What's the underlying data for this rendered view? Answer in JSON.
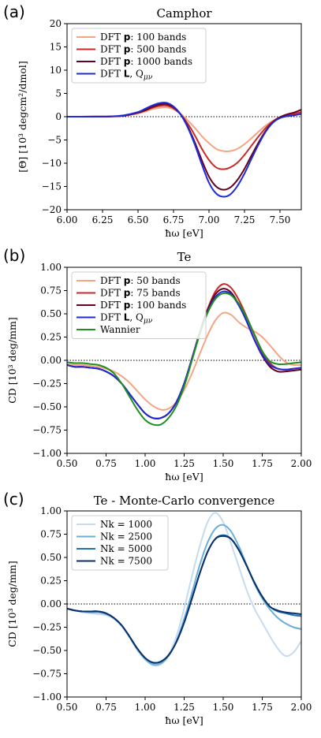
{
  "chart_data": [
    {
      "panel_label": "(a)",
      "type": "line",
      "title": "Camphor",
      "xlabel": "ħω [eV]",
      "ylabel": "[Θ] [10³ degcm²/dmol]",
      "xlim": [
        6.0,
        7.65
      ],
      "ylim": [
        -20,
        20
      ],
      "xticks": [
        6.0,
        6.25,
        6.5,
        6.75,
        7.0,
        7.25,
        7.5
      ],
      "xtick_labels": [
        "6.00",
        "6.25",
        "6.50",
        "6.75",
        "7.00",
        "7.25",
        "7.50"
      ],
      "yticks": [
        -20,
        -15,
        -10,
        -5,
        0,
        5,
        10,
        15,
        20
      ],
      "ytick_labels": [
        "−20",
        "−15",
        "−10",
        "−5",
        "0",
        "5",
        "10",
        "15",
        "20"
      ],
      "zero_line": true,
      "legend_position": "upper-left",
      "x": [
        6.0,
        6.1,
        6.2,
        6.3,
        6.4,
        6.5,
        6.55,
        6.6,
        6.65,
        6.7,
        6.75,
        6.8,
        6.85,
        6.9,
        6.95,
        7.0,
        7.05,
        7.1,
        7.15,
        7.2,
        7.25,
        7.3,
        7.35,
        7.4,
        7.45,
        7.5,
        7.55,
        7.6,
        7.65
      ],
      "series": [
        {
          "name": "DFT p: 100 bands",
          "label_parts": [
            "DFT ",
            "p",
            ": 100 bands"
          ],
          "color": "#f4a582",
          "values": [
            0,
            0,
            0.02,
            0.05,
            0.2,
            0.7,
            1.1,
            1.6,
            1.9,
            2.0,
            1.6,
            0.6,
            -0.8,
            -2.4,
            -4.2,
            -5.7,
            -6.9,
            -7.4,
            -7.4,
            -6.9,
            -5.9,
            -4.6,
            -3.2,
            -1.9,
            -0.9,
            -0.2,
            0.2,
            0.5,
            0.9
          ]
        },
        {
          "name": "DFT p: 500 bands",
          "label_parts": [
            "DFT ",
            "p",
            ": 500 bands"
          ],
          "color": "#c82a2a",
          "values": [
            0,
            0,
            0.02,
            0.05,
            0.2,
            0.8,
            1.3,
            1.9,
            2.3,
            2.4,
            1.8,
            0.5,
            -1.5,
            -4.0,
            -6.9,
            -9.3,
            -10.9,
            -11.3,
            -10.9,
            -9.9,
            -8.2,
            -6.2,
            -4.2,
            -2.4,
            -1.0,
            -0.1,
            0.3,
            0.6,
            1.0
          ]
        },
        {
          "name": "DFT p: 1000 bands",
          "label_parts": [
            "DFT ",
            "p",
            ": 1000 bands"
          ],
          "color": "#67001f",
          "values": [
            0,
            0,
            0.02,
            0.05,
            0.2,
            0.9,
            1.4,
            2.1,
            2.6,
            2.7,
            2.0,
            0.5,
            -2.1,
            -5.5,
            -9.4,
            -12.9,
            -15.0,
            -15.7,
            -15.2,
            -13.6,
            -11.2,
            -8.3,
            -5.5,
            -3.0,
            -1.2,
            -0.1,
            0.5,
            0.9,
            1.5
          ]
        },
        {
          "name": "DFT L, Qμν",
          "label_parts": [
            "DFT ",
            "L",
            ", Q",
            "μν"
          ],
          "color": "#1d2bd9",
          "values": [
            0,
            0,
            0.02,
            0.05,
            0.3,
            1.0,
            1.7,
            2.4,
            2.9,
            3.0,
            2.2,
            0.5,
            -2.3,
            -6.0,
            -10.3,
            -14.2,
            -16.5,
            -17.2,
            -16.7,
            -14.9,
            -12.2,
            -9.0,
            -5.9,
            -3.2,
            -1.3,
            -0.3,
            0.1,
            0.3,
            0.6
          ]
        }
      ]
    },
    {
      "panel_label": "(b)",
      "type": "line",
      "title": "Te",
      "xlabel": "ħω [eV]",
      "ylabel": "CD [10³ deg/mm]",
      "xlim": [
        0.5,
        2.0
      ],
      "ylim": [
        -1.0,
        1.0
      ],
      "xticks": [
        0.5,
        0.75,
        1.0,
        1.25,
        1.5,
        1.75,
        2.0
      ],
      "xtick_labels": [
        "0.50",
        "0.75",
        "1.00",
        "1.25",
        "1.50",
        "1.75",
        "2.00"
      ],
      "yticks": [
        -1.0,
        -0.75,
        -0.5,
        -0.25,
        0.0,
        0.25,
        0.5,
        0.75,
        1.0
      ],
      "ytick_labels": [
        "−1.00",
        "−0.75",
        "−0.50",
        "−0.25",
        "0.00",
        "0.25",
        "0.50",
        "0.75",
        "1.00"
      ],
      "zero_line": true,
      "legend_position": "upper-left",
      "x": [
        0.5,
        0.55,
        0.6,
        0.65,
        0.7,
        0.75,
        0.8,
        0.85,
        0.9,
        0.95,
        1.0,
        1.05,
        1.1,
        1.15,
        1.2,
        1.25,
        1.3,
        1.35,
        1.4,
        1.45,
        1.5,
        1.55,
        1.6,
        1.65,
        1.7,
        1.75,
        1.8,
        1.85,
        1.9,
        1.95,
        2.0
      ],
      "series": [
        {
          "name": "DFT p: 50 bands",
          "label_parts": [
            "DFT ",
            "p",
            ": 50 bands"
          ],
          "color": "#f4a582",
          "values": [
            -0.04,
            -0.05,
            -0.05,
            -0.06,
            -0.07,
            -0.09,
            -0.12,
            -0.17,
            -0.24,
            -0.33,
            -0.42,
            -0.49,
            -0.53,
            -0.52,
            -0.45,
            -0.32,
            -0.14,
            0.07,
            0.27,
            0.43,
            0.51,
            0.49,
            0.41,
            0.35,
            0.31,
            0.25,
            0.16,
            0.06,
            -0.02,
            -0.05,
            -0.05
          ]
        },
        {
          "name": "DFT p: 75 bands",
          "label_parts": [
            "DFT ",
            "p",
            ": 75 bands"
          ],
          "color": "#c82a2a",
          "values": [
            -0.05,
            -0.07,
            -0.07,
            -0.08,
            -0.09,
            -0.12,
            -0.17,
            -0.25,
            -0.36,
            -0.47,
            -0.57,
            -0.62,
            -0.62,
            -0.57,
            -0.45,
            -0.25,
            0.02,
            0.3,
            0.55,
            0.74,
            0.82,
            0.78,
            0.65,
            0.47,
            0.27,
            0.09,
            -0.03,
            -0.09,
            -0.1,
            -0.09,
            -0.08
          ]
        },
        {
          "name": "DFT p: 100 bands",
          "label_parts": [
            "DFT ",
            "p",
            ": 100 bands"
          ],
          "color": "#67001f",
          "values": [
            -0.05,
            -0.07,
            -0.07,
            -0.08,
            -0.09,
            -0.12,
            -0.17,
            -0.25,
            -0.36,
            -0.47,
            -0.57,
            -0.62,
            -0.62,
            -0.57,
            -0.45,
            -0.25,
            0.02,
            0.3,
            0.54,
            0.71,
            0.77,
            0.73,
            0.6,
            0.42,
            0.22,
            0.05,
            -0.07,
            -0.12,
            -0.12,
            -0.11,
            -0.1
          ]
        },
        {
          "name": "DFT L, Qμν",
          "label_parts": [
            "DFT ",
            "L",
            ", Q",
            "μν"
          ],
          "color": "#1d2bd9",
          "values": [
            -0.05,
            -0.07,
            -0.07,
            -0.08,
            -0.09,
            -0.12,
            -0.17,
            -0.25,
            -0.36,
            -0.47,
            -0.57,
            -0.62,
            -0.62,
            -0.57,
            -0.45,
            -0.25,
            0.02,
            0.29,
            0.52,
            0.68,
            0.74,
            0.71,
            0.59,
            0.42,
            0.22,
            0.06,
            -0.05,
            -0.09,
            -0.1,
            -0.09,
            -0.08
          ]
        },
        {
          "name": "Wannier",
          "label_parts": [
            "Wannier"
          ],
          "color": "#1f8f1f",
          "values": [
            -0.02,
            -0.03,
            -0.03,
            -0.04,
            -0.05,
            -0.08,
            -0.14,
            -0.25,
            -0.39,
            -0.53,
            -0.64,
            -0.69,
            -0.69,
            -0.62,
            -0.49,
            -0.28,
            0.0,
            0.28,
            0.51,
            0.66,
            0.72,
            0.7,
            0.61,
            0.46,
            0.28,
            0.1,
            -0.01,
            -0.04,
            -0.04,
            -0.03,
            -0.02
          ]
        }
      ]
    },
    {
      "panel_label": "(c)",
      "type": "line",
      "title": "Te - Monte-Carlo convergence",
      "xlabel": "ħω [eV]",
      "ylabel": "CD [10³ deg/mm]",
      "xlim": [
        0.5,
        2.0
      ],
      "ylim": [
        -1.0,
        1.0
      ],
      "xticks": [
        0.5,
        0.75,
        1.0,
        1.25,
        1.5,
        1.75,
        2.0
      ],
      "xtick_labels": [
        "0.50",
        "0.75",
        "1.00",
        "1.25",
        "1.50",
        "1.75",
        "2.00"
      ],
      "yticks": [
        -1.0,
        -0.75,
        -0.5,
        -0.25,
        0.0,
        0.25,
        0.5,
        0.75,
        1.0
      ],
      "ytick_labels": [
        "−1.00",
        "−0.75",
        "−0.50",
        "−0.25",
        "0.00",
        "0.25",
        "0.50",
        "0.75",
        "1.00"
      ],
      "zero_line": true,
      "legend_position": "upper-left",
      "x": [
        0.5,
        0.55,
        0.6,
        0.65,
        0.7,
        0.75,
        0.8,
        0.85,
        0.9,
        0.95,
        1.0,
        1.05,
        1.1,
        1.15,
        1.2,
        1.25,
        1.3,
        1.35,
        1.4,
        1.45,
        1.5,
        1.55,
        1.6,
        1.65,
        1.7,
        1.75,
        1.8,
        1.85,
        1.9,
        1.95,
        2.0
      ],
      "series": [
        {
          "name": "Nk = 1000",
          "label_parts": [
            "Nk = 1000"
          ],
          "color": "#c6dbef",
          "values": [
            -0.05,
            -0.07,
            -0.09,
            -0.1,
            -0.11,
            -0.12,
            -0.16,
            -0.24,
            -0.36,
            -0.5,
            -0.6,
            -0.66,
            -0.65,
            -0.55,
            -0.35,
            -0.05,
            0.3,
            0.62,
            0.88,
            0.98,
            0.88,
            0.65,
            0.4,
            0.15,
            -0.05,
            -0.2,
            -0.35,
            -0.48,
            -0.56,
            -0.52,
            -0.4
          ]
        },
        {
          "name": "Nk = 2500",
          "label_parts": [
            "Nk = 2500"
          ],
          "color": "#6baed6",
          "values": [
            -0.05,
            -0.07,
            -0.08,
            -0.09,
            -0.09,
            -0.11,
            -0.15,
            -0.23,
            -0.35,
            -0.48,
            -0.59,
            -0.65,
            -0.64,
            -0.56,
            -0.4,
            -0.16,
            0.12,
            0.42,
            0.66,
            0.81,
            0.85,
            0.78,
            0.62,
            0.42,
            0.22,
            0.06,
            -0.06,
            -0.15,
            -0.21,
            -0.25,
            -0.27
          ]
        },
        {
          "name": "Nk = 5000",
          "label_parts": [
            "Nk = 5000"
          ],
          "color": "#2171b5",
          "values": [
            -0.05,
            -0.07,
            -0.08,
            -0.08,
            -0.08,
            -0.1,
            -0.15,
            -0.23,
            -0.35,
            -0.48,
            -0.58,
            -0.63,
            -0.62,
            -0.55,
            -0.41,
            -0.2,
            0.06,
            0.33,
            0.56,
            0.7,
            0.74,
            0.7,
            0.58,
            0.41,
            0.23,
            0.08,
            -0.03,
            -0.08,
            -0.1,
            -0.12,
            -0.13
          ]
        },
        {
          "name": "Nk = 7500",
          "label_parts": [
            "Nk = 7500"
          ],
          "color": "#08306b",
          "values": [
            -0.05,
            -0.07,
            -0.08,
            -0.08,
            -0.08,
            -0.1,
            -0.15,
            -0.23,
            -0.35,
            -0.48,
            -0.58,
            -0.63,
            -0.62,
            -0.55,
            -0.41,
            -0.2,
            0.06,
            0.33,
            0.56,
            0.7,
            0.73,
            0.7,
            0.58,
            0.41,
            0.23,
            0.08,
            -0.03,
            -0.07,
            -0.09,
            -0.1,
            -0.11
          ]
        }
      ]
    }
  ]
}
